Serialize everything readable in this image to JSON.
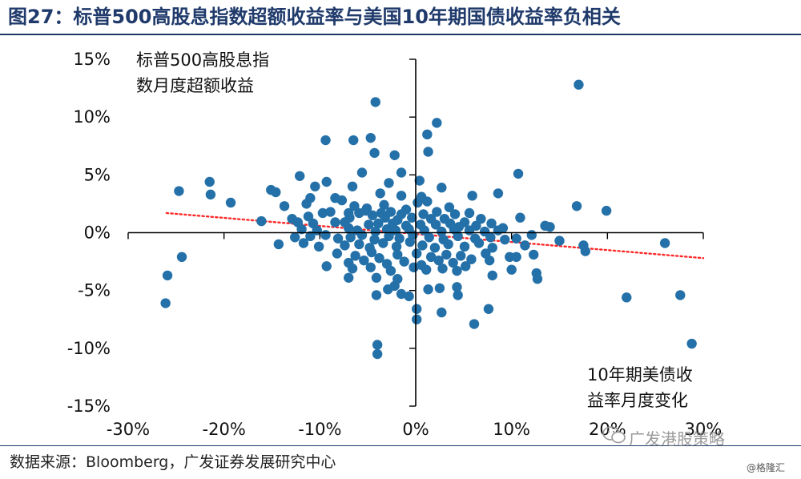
{
  "title": "图27：标普500高股息指数超额收益率与美国10年期国债收益率负相关",
  "source": "数据来源：Bloomberg，广发证券发展研究中心",
  "watermarks": {
    "main": "广发港股策略",
    "small": "@格隆汇",
    "icon": "wechat-icon"
  },
  "colors": {
    "points": "#2470a8",
    "trend": "#ff2a2a",
    "title": "#1f3a6b"
  },
  "chart_data": {
    "type": "scatter",
    "ylabel": "标普500高股息指数月度超额收益",
    "xlabel": "10年期美债收益率月度变化",
    "ylabel_lines": [
      "标普500高股息指",
      "数月度超额收益"
    ],
    "xlabel_lines": [
      "10年期美债收",
      "益率月度变化"
    ],
    "xlim": [
      -30,
      30
    ],
    "ylim": [
      -15,
      15
    ],
    "x_ticks": [
      -30,
      -20,
      -10,
      0,
      10,
      20,
      30
    ],
    "y_ticks": [
      -15,
      -10,
      -5,
      0,
      5,
      10,
      15
    ],
    "x_tick_labels": [
      "-30%",
      "-20%",
      "-10%",
      "0%",
      "10%",
      "20%",
      "30%"
    ],
    "y_tick_labels": [
      "-15%",
      "-10%",
      "-5%",
      "0%",
      "5%",
      "10%",
      "15%"
    ],
    "trendline": {
      "style": "dotted",
      "from": [
        -26,
        1.7
      ],
      "to": [
        30,
        -2.2
      ]
    },
    "points": [
      [
        17,
        12.8
      ],
      [
        -4.2,
        11.3
      ],
      [
        2.2,
        9.5
      ],
      [
        1.2,
        8.5
      ],
      [
        -9.4,
        8.0
      ],
      [
        -6.5,
        8.0
      ],
      [
        -4.7,
        8.2
      ],
      [
        1.3,
        7.0
      ],
      [
        -2.2,
        6.7
      ],
      [
        -4.3,
        6.9
      ],
      [
        -5.6,
        5.2
      ],
      [
        -1.5,
        5.2
      ],
      [
        -12.1,
        4.9
      ],
      [
        10.7,
        5.1
      ],
      [
        0.4,
        4.5
      ],
      [
        -21.5,
        4.4
      ],
      [
        -9.3,
        4.4
      ],
      [
        -10.5,
        4.0
      ],
      [
        -6.6,
        4.0
      ],
      [
        -2.8,
        4.3
      ],
      [
        2.7,
        3.9
      ],
      [
        -24.7,
        3.6
      ],
      [
        -15.1,
        3.7
      ],
      [
        -14.6,
        3.5
      ],
      [
        -21.4,
        3.3
      ],
      [
        -11,
        3.0
      ],
      [
        -8.4,
        3.0
      ],
      [
        -3.7,
        3.4
      ],
      [
        -1.5,
        3.2
      ],
      [
        0.6,
        3.1
      ],
      [
        5.9,
        3.2
      ],
      [
        8.6,
        3.4
      ],
      [
        -19.3,
        2.6
      ],
      [
        -13.7,
        2.3
      ],
      [
        -11.4,
        2.5
      ],
      [
        -7.7,
        2.8
      ],
      [
        -6.4,
        2.3
      ],
      [
        -5.1,
        2.1
      ],
      [
        -3.3,
        2.4
      ],
      [
        -1.0,
        2.0
      ],
      [
        0.2,
        2.6
      ],
      [
        1.2,
        2.7
      ],
      [
        3.5,
        2.2
      ],
      [
        16.8,
        2.3
      ],
      [
        19.9,
        1.9
      ],
      [
        -9.7,
        1.7
      ],
      [
        -8.9,
        1.8
      ],
      [
        -7.0,
        1.7
      ],
      [
        -5.9,
        1.7
      ],
      [
        -5.2,
        1.9
      ],
      [
        -3.6,
        1.7
      ],
      [
        -2.6,
        1.8
      ],
      [
        -1.5,
        1.6
      ],
      [
        0.8,
        1.6
      ],
      [
        2.2,
        1.8
      ],
      [
        4.1,
        1.6
      ],
      [
        5.6,
        1.7
      ],
      [
        -12.9,
        1.2
      ],
      [
        -11.2,
        1.4
      ],
      [
        -6.9,
        1.3
      ],
      [
        -4.5,
        1.5
      ],
      [
        -3.2,
        1.3
      ],
      [
        -1.9,
        1.1
      ],
      [
        -0.4,
        1.3
      ],
      [
        1.6,
        1.2
      ],
      [
        3.0,
        1.2
      ],
      [
        5.1,
        0.9
      ],
      [
        6.8,
        1.2
      ],
      [
        10.9,
        1.3
      ],
      [
        -16.1,
        1.0
      ],
      [
        -12.3,
        0.9
      ],
      [
        -10.7,
        0.8
      ],
      [
        -8.4,
        0.9
      ],
      [
        -7.4,
        0.9
      ],
      [
        -4.9,
        0.7
      ],
      [
        -3.9,
        0.8
      ],
      [
        -2.4,
        0.8
      ],
      [
        -1.0,
        0.6
      ],
      [
        0.5,
        0.7
      ],
      [
        2.1,
        0.7
      ],
      [
        3.6,
        0.8
      ],
      [
        4.5,
        0.5
      ],
      [
        6.3,
        0.6
      ],
      [
        7.9,
        0.8
      ],
      [
        9.1,
        0.4
      ],
      [
        13.5,
        0.6
      ],
      [
        14.0,
        0.5
      ],
      [
        -11.9,
        0.3
      ],
      [
        -10.3,
        0.2
      ],
      [
        -7.0,
        0.4
      ],
      [
        -6.1,
        0.2
      ],
      [
        -4.2,
        0.1
      ],
      [
        -3.0,
        0.3
      ],
      [
        -2.1,
        0.2
      ],
      [
        -0.7,
        0.3
      ],
      [
        0.9,
        0.2
      ],
      [
        2.7,
        0.1
      ],
      [
        4.0,
        0.3
      ],
      [
        5.6,
        0.2
      ],
      [
        7.2,
        0.1
      ],
      [
        8.6,
        0.2
      ],
      [
        -12.6,
        -0.4
      ],
      [
        -11.0,
        -0.3
      ],
      [
        -9.4,
        -0.2
      ],
      [
        -8.1,
        -0.5
      ],
      [
        -6.8,
        -0.4
      ],
      [
        -5.6,
        -0.2
      ],
      [
        -4.3,
        -0.6
      ],
      [
        -2.8,
        -0.3
      ],
      [
        -1.7,
        -0.5
      ],
      [
        -0.3,
        -0.2
      ],
      [
        1.4,
        -0.4
      ],
      [
        2.9,
        -0.6
      ],
      [
        4.4,
        -0.3
      ],
      [
        6.2,
        -0.5
      ],
      [
        7.8,
        -0.4
      ],
      [
        9.3,
        -0.6
      ],
      [
        10.5,
        -0.5
      ],
      [
        12.1,
        -0.2
      ],
      [
        15.0,
        -0.7
      ],
      [
        17.5,
        -1.1
      ],
      [
        26.0,
        -0.9
      ],
      [
        -14.3,
        -1.0
      ],
      [
        -11.7,
        -0.9
      ],
      [
        -10.1,
        -1.2
      ],
      [
        -7.4,
        -1.1
      ],
      [
        -5.9,
        -1.0
      ],
      [
        -4.8,
        -1.3
      ],
      [
        -3.4,
        -0.9
      ],
      [
        -2.0,
        -1.2
      ],
      [
        -0.6,
        -0.8
      ],
      [
        0.7,
        -1.1
      ],
      [
        2.0,
        -1.3
      ],
      [
        3.4,
        -1.0
      ],
      [
        5.1,
        -1.2
      ],
      [
        6.6,
        -0.9
      ],
      [
        8.0,
        -1.3
      ],
      [
        11.4,
        -1.1
      ],
      [
        17.7,
        -1.6
      ],
      [
        -8.2,
        -1.8
      ],
      [
        -6.3,
        -2.0
      ],
      [
        -4.6,
        -1.7
      ],
      [
        -3.8,
        -2.2
      ],
      [
        -1.9,
        -1.9
      ],
      [
        0.1,
        -1.8
      ],
      [
        1.6,
        -2.1
      ],
      [
        3.2,
        -1.9
      ],
      [
        4.7,
        -2.0
      ],
      [
        7.3,
        -1.8
      ],
      [
        9.8,
        -2.1
      ],
      [
        12.3,
        -1.9
      ],
      [
        -7.0,
        -2.6
      ],
      [
        -5.4,
        -2.4
      ],
      [
        -3.0,
        -2.7
      ],
      [
        -1.2,
        -2.5
      ],
      [
        0.6,
        -2.8
      ],
      [
        2.4,
        -2.4
      ],
      [
        3.9,
        -2.6
      ],
      [
        5.8,
        -2.3
      ],
      [
        7.7,
        -2.4
      ],
      [
        10.5,
        -2.1
      ],
      [
        -9.3,
        -2.9
      ],
      [
        -6.6,
        -3.1
      ],
      [
        -4.7,
        -3.0
      ],
      [
        -2.6,
        -3.3
      ],
      [
        -0.2,
        -3.0
      ],
      [
        1.1,
        -3.2
      ],
      [
        2.8,
        -3.1
      ],
      [
        4.3,
        -3.3
      ],
      [
        5.2,
        -2.9
      ],
      [
        10.0,
        -3.2
      ],
      [
        12.6,
        -3.5
      ],
      [
        -7.0,
        -3.9
      ],
      [
        -4.1,
        -3.9
      ],
      [
        -1.9,
        -4.0
      ],
      [
        8.0,
        -3.7
      ],
      [
        12.7,
        -4.0
      ],
      [
        -2.2,
        -4.6
      ],
      [
        -2.9,
        -4.9
      ],
      [
        1.3,
        -4.9
      ],
      [
        2.5,
        -4.8
      ],
      [
        4.3,
        -4.7
      ],
      [
        -4.1,
        -5.4
      ],
      [
        -1.5,
        -5.3
      ],
      [
        -0.7,
        -5.5
      ],
      [
        4.4,
        -5.4
      ],
      [
        22.0,
        -5.6
      ],
      [
        27.6,
        -5.4
      ],
      [
        -26.1,
        -6.1
      ],
      [
        0.1,
        -6.6
      ],
      [
        7.6,
        -6.6
      ],
      [
        2.7,
        -6.9
      ],
      [
        0.1,
        -7.5
      ],
      [
        6.1,
        -7.9
      ],
      [
        -24.4,
        -2.1
      ],
      [
        -25.9,
        -3.7
      ],
      [
        -4.0,
        -9.7
      ],
      [
        -4.0,
        -10.5
      ],
      [
        28.8,
        -9.6
      ]
    ]
  }
}
